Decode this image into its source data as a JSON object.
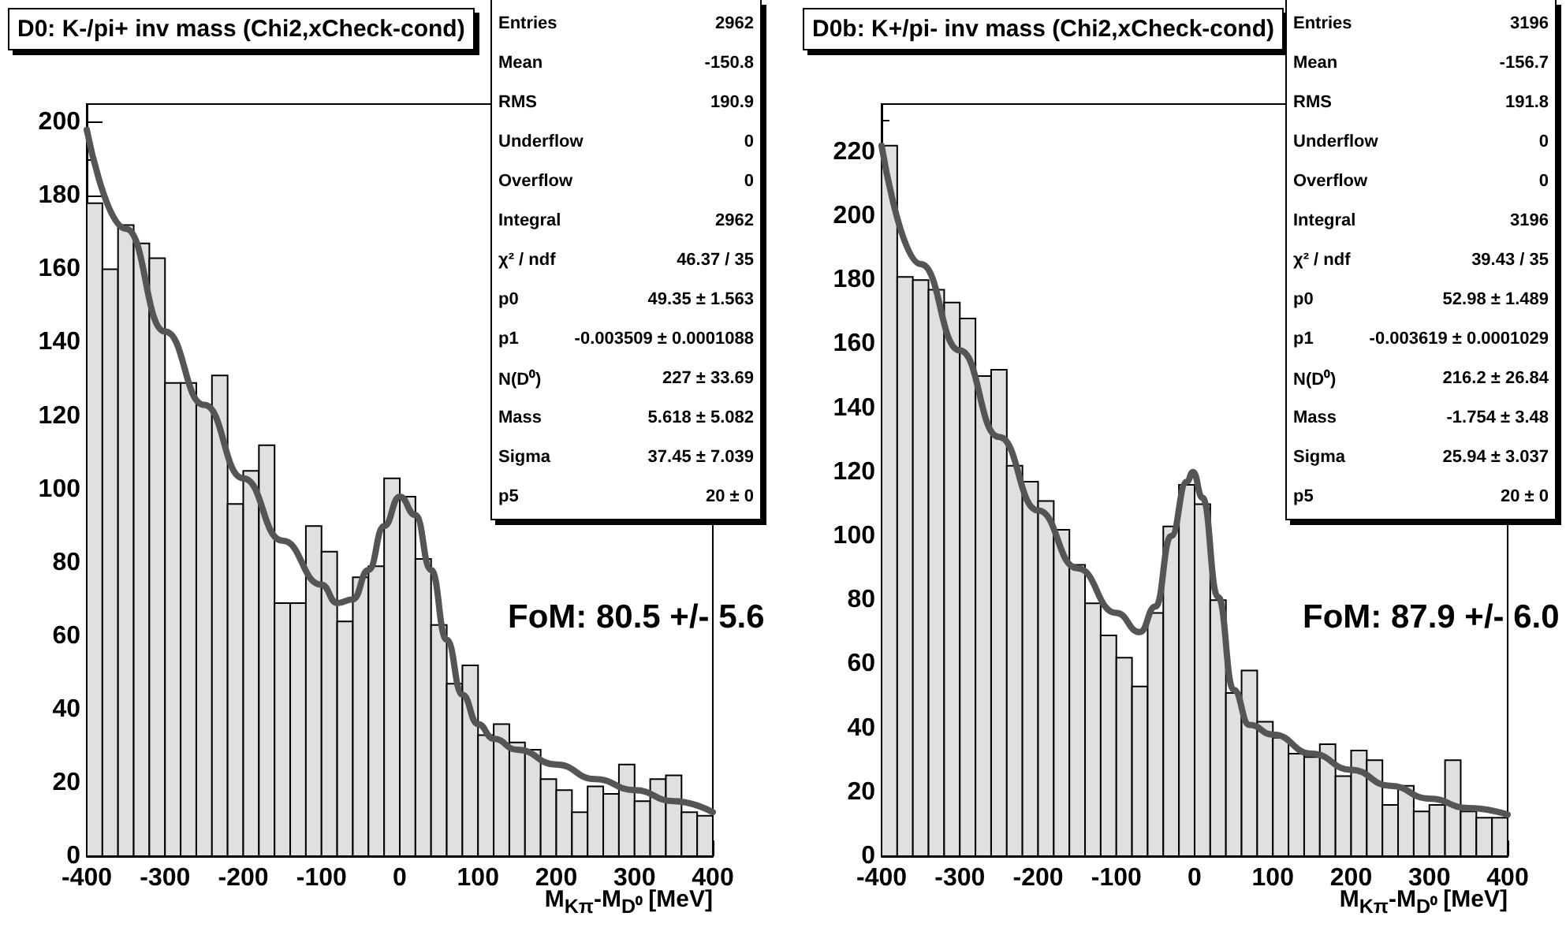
{
  "chart_data": [
    {
      "type": "histogram",
      "title": "D0: K-/pi+ inv mass (Chi2,xCheck-cond)",
      "xlabel": "M$_{Kπ}$-M$_{D⁰}$ [MeV]",
      "bins": [
        -400,
        -380,
        -360,
        -340,
        -320,
        -300,
        -280,
        -260,
        -240,
        -220,
        -200,
        -180,
        -160,
        -140,
        -120,
        -100,
        -80,
        -60,
        -40,
        -20,
        0,
        20,
        40,
        60,
        80,
        100,
        120,
        140,
        160,
        180,
        200,
        220,
        240,
        260,
        280,
        300,
        320,
        340,
        360,
        380,
        400
      ],
      "values": [
        178,
        160,
        172,
        167,
        163,
        129,
        129,
        123,
        131,
        96,
        105,
        112,
        69,
        69,
        90,
        83,
        64,
        76,
        79,
        103,
        98,
        81,
        63,
        47,
        52,
        33,
        36,
        31,
        29,
        21,
        18,
        12,
        19,
        17,
        25,
        15,
        21,
        22,
        12,
        11
      ],
      "color": "#e0e0e0",
      "series": [
        {
          "type": "line",
          "color": "#555555",
          "x": [
            -400,
            -350,
            -300,
            -250,
            -200,
            -150,
            -100,
            -80,
            -60,
            -40,
            -20,
            0,
            20,
            40,
            60,
            80,
            100,
            120,
            150,
            200,
            250,
            300,
            350,
            400
          ],
          "values": [
            198,
            171,
            143,
            123,
            103,
            86,
            74,
            69,
            70,
            78,
            90,
            98,
            93,
            78,
            59,
            44,
            36,
            32,
            29,
            25,
            21,
            18,
            15,
            12
          ]
        }
      ],
      "marker": "none",
      "line_style": "solid",
      "xlim": [
        -400,
        400
      ],
      "xticks": [
        -400,
        -300,
        -200,
        -100,
        0,
        100,
        200,
        300,
        400
      ],
      "ylim": [
        0,
        205
      ],
      "yticks": [
        0,
        20,
        40,
        60,
        80,
        100,
        120,
        140,
        160,
        180,
        200
      ],
      "grid": false,
      "annotations": [
        "FoM: 80.5 +/- 5.6",
        "Entries",
        "2962",
        "Mean",
        "-150.8",
        "RMS",
        "190.9",
        "Underflow",
        "0",
        "Overflow",
        "0",
        "Integral",
        "2962",
        "χ² / ndf",
        "46.37 / 35",
        "p0",
        "49.35 ± 1.563",
        "p1",
        "-0.003509 ± 0.0001088",
        "N(D⁰)",
        "227 ± 33.69",
        "Mass",
        "5.618 ± 5.082",
        "Sigma",
        "37.45 ± 7.039",
        "p5",
        "20 ± 0"
      ]
    },
    {
      "type": "histogram",
      "title": "D0b: K+/pi- inv mass (Chi2,xCheck-cond)",
      "xlabel": "M$_{Kπ}$-M$_{D⁰}$ [MeV]",
      "bins": [
        -400,
        -380,
        -360,
        -340,
        -320,
        -300,
        -280,
        -260,
        -240,
        -220,
        -200,
        -180,
        -160,
        -140,
        -120,
        -100,
        -80,
        -60,
        -40,
        -20,
        0,
        20,
        40,
        60,
        80,
        100,
        120,
        140,
        160,
        180,
        200,
        220,
        240,
        260,
        280,
        300,
        320,
        340,
        360,
        380,
        400
      ],
      "values": [
        222,
        181,
        180,
        177,
        173,
        168,
        150,
        152,
        122,
        117,
        111,
        102,
        91,
        79,
        69,
        62,
        53,
        76,
        103,
        116,
        110,
        80,
        51,
        58,
        42,
        37,
        32,
        31,
        35,
        25,
        33,
        30,
        16,
        22,
        14,
        16,
        30,
        14,
        12,
        12
      ],
      "color": "#e0e0e0",
      "series": [
        {
          "type": "line",
          "color": "#555555",
          "x": [
            -400,
            -350,
            -300,
            -250,
            -200,
            -150,
            -100,
            -70,
            -50,
            -30,
            -10,
            -2,
            10,
            30,
            50,
            70,
            100,
            150,
            200,
            250,
            300,
            350,
            400
          ],
          "values": [
            222,
            185,
            158,
            131,
            108,
            90,
            76,
            70,
            78,
            100,
            117,
            120,
            112,
            81,
            52,
            41,
            38,
            32,
            27,
            22,
            18,
            15,
            13
          ]
        }
      ],
      "marker": "none",
      "line_style": "solid",
      "xlim": [
        -400,
        400
      ],
      "xticks": [
        -400,
        -300,
        -200,
        -100,
        0,
        100,
        200,
        300,
        400
      ],
      "ylim": [
        0,
        235
      ],
      "yticks": [
        0,
        20,
        40,
        60,
        80,
        100,
        120,
        140,
        160,
        180,
        200,
        220
      ],
      "grid": false,
      "annotations": [
        "FoM: 87.9 +/- 6.0",
        "Entries",
        "3196",
        "Mean",
        "-156.7",
        "RMS",
        "191.8",
        "Underflow",
        "0",
        "Overflow",
        "0",
        "Integral",
        "3196",
        "χ² / ndf",
        "39.43 / 35",
        "p0",
        "52.98 ± 1.489",
        "p1",
        "-0.003619 ± 0.0001029",
        "N(D⁰)",
        "216.2 ± 26.84",
        "Mass",
        "-1.754 ± 3.48",
        "Sigma",
        "25.94 ± 3.037",
        "p5",
        "20 ± 0"
      ]
    }
  ]
}
